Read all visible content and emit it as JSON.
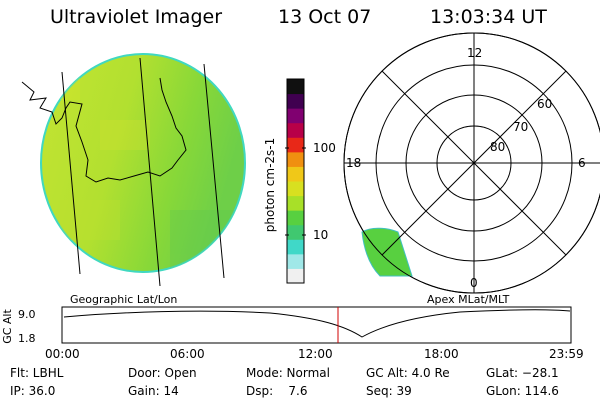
{
  "header": {
    "title": "Ultraviolet Imager",
    "date": "13 Oct 07",
    "time": "13:03:34 UT"
  },
  "panels": {
    "geo_label": "Geographic Lat/Lon",
    "apex_label": "Apex MLat/MLT"
  },
  "colorbar": {
    "unit_label": "photon cm-2s-1",
    "ticks": [
      "100",
      "10"
    ],
    "colors": [
      "#f0f0f0",
      "#a0e8e8",
      "#40d8c8",
      "#40c870",
      "#58d040",
      "#a8e028",
      "#d8e020",
      "#f0c818",
      "#f09010",
      "#e82818",
      "#b80048",
      "#800070",
      "#400050",
      "#101010"
    ]
  },
  "polar": {
    "mlt_labels": [
      "12",
      "18",
      "6",
      "0"
    ],
    "lat_labels": [
      "60",
      "70",
      "80"
    ]
  },
  "altitude_plot": {
    "ylabel": "GC Alt",
    "y_ticks": [
      "9.0",
      "1.8"
    ],
    "x_ticks": [
      "00:00",
      "06:00",
      "12:00",
      "18:00",
      "23:59"
    ],
    "current_marker_color": "#d00000"
  },
  "info": {
    "flt": "Flt: LBHL",
    "ip": "IP: 36.0",
    "door": "Door: Open",
    "gain": "Gain: 14",
    "mode": "Mode: Normal",
    "dsp": "Dsp:    7.6",
    "gc_alt": "GC Alt: 4.0 Re",
    "seq": "Seq: 39",
    "glat": "GLat: −28.1",
    "glon": "GLon: 114.6"
  }
}
